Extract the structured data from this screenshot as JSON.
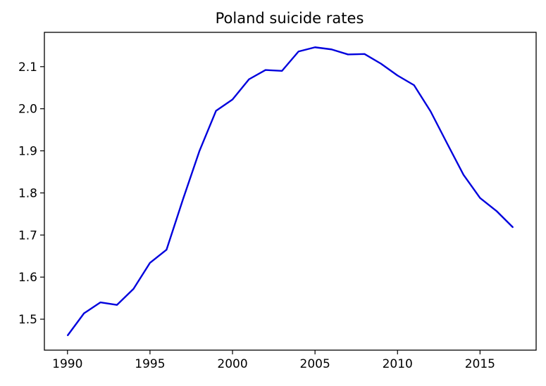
{
  "chart_data": {
    "type": "line",
    "title": "Poland suicide rates",
    "xlabel": "",
    "ylabel": "",
    "xlim": [
      1988.6,
      2018.4
    ],
    "ylim": [
      1.4265,
      2.1815
    ],
    "xticks": [
      1990,
      1995,
      2000,
      2005,
      2010,
      2015
    ],
    "yticks": [
      1.5,
      1.6,
      1.7,
      1.8,
      1.9,
      2.0,
      2.1
    ],
    "ytick_labels": [
      "1.5",
      "1.6",
      "1.7",
      "1.8",
      "1.9",
      "2.0",
      "2.1"
    ],
    "grid": false,
    "legend": "none",
    "series": [
      {
        "color": "#0000dd",
        "x": [
          1990,
          1991,
          1992,
          1993,
          1994,
          1995,
          1996,
          1997,
          1998,
          1999,
          2000,
          2001,
          2002,
          2003,
          2004,
          2005,
          2006,
          2007,
          2008,
          2009,
          2010,
          2011,
          2012,
          2013,
          2014,
          2015,
          2016,
          2017
        ],
        "y": [
          1.461,
          1.514,
          1.54,
          1.534,
          1.572,
          1.634,
          1.665,
          1.785,
          1.9,
          1.995,
          2.022,
          2.07,
          2.092,
          2.09,
          2.136,
          2.146,
          2.141,
          2.129,
          2.13,
          2.107,
          2.079,
          2.056,
          1.994,
          1.918,
          1.843,
          1.788,
          1.757,
          1.718
        ]
      }
    ]
  }
}
